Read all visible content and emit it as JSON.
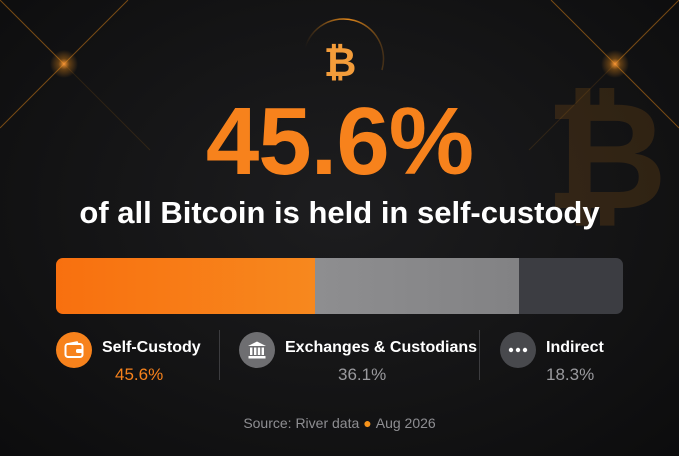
{
  "headline": {
    "value": "45.6%",
    "subtitle": "of all Bitcoin is held in self-custody"
  },
  "icons": {
    "top_logo": "bitcoin-symbol",
    "watermark": "bitcoin-symbol",
    "self_custody": "wallet-icon",
    "exchanges": "bank-icon",
    "indirect": "more-dots-icon"
  },
  "symbols": {
    "bitcoin": "₿"
  },
  "colors": {
    "accent": "#f7821c",
    "self_custody": "#f7821c",
    "exchanges": "#8a8a8d",
    "indirect": "#3d3e42",
    "value_muted": "#9a9a9e"
  },
  "chart_data": {
    "type": "bar",
    "orientation": "horizontal-stacked-100",
    "categories": [
      "Self-Custody",
      "Exchanges & Custodians",
      "Indirect"
    ],
    "values": [
      45.6,
      36.1,
      18.3
    ],
    "value_labels": [
      "45.6%",
      "36.1%",
      "18.3%"
    ],
    "unit": "%",
    "title": "45.6%",
    "subtitle": "of all Bitcoin is held in self-custody",
    "legend_position": "bottom"
  },
  "source": {
    "text": "Source: River data",
    "date": "Aug 2026"
  }
}
